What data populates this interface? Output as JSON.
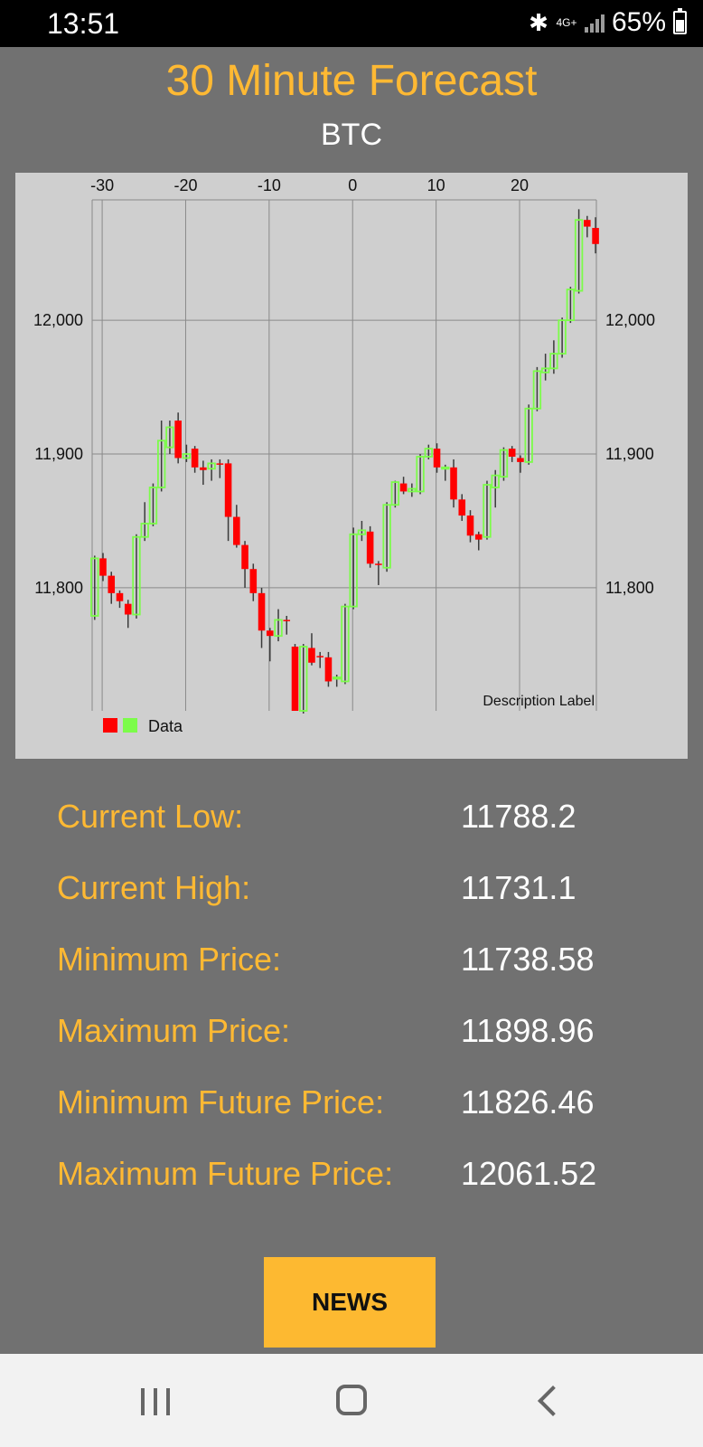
{
  "status_bar": {
    "time": "13:51",
    "network": "4G+",
    "battery": "65%",
    "battery_level": 0.65
  },
  "header": {
    "title": "30 Minute Forecast",
    "subtitle": "BTC"
  },
  "chart_data": {
    "type": "candlestick",
    "description_label": "Description Label",
    "legend": "Data",
    "colors": {
      "increasing": "#7cfc4a",
      "decreasing": "#ff0000",
      "wick": "#3a3a3a",
      "grid": "#8a8a8a",
      "background": "#cfcfcf"
    },
    "xlim": [
      -31.2,
      29.2
    ],
    "ylim": [
      11708,
      12090
    ],
    "x_ticks": [
      -30,
      -20,
      -10,
      0,
      10,
      20
    ],
    "x_tick_labels": [
      "-30",
      "-20",
      "-10",
      "0",
      "10",
      "20"
    ],
    "y_ticks": [
      11800,
      11900,
      12000
    ],
    "y_tick_labels": [
      "11,800",
      "11,900",
      "12,000"
    ],
    "grid": true,
    "candles": [
      {
        "x": -30.9,
        "open": 11779,
        "close": 11822,
        "high": 11824,
        "low": 11776
      },
      {
        "x": -29.9,
        "open": 11822,
        "close": 11809,
        "high": 11826,
        "low": 11805
      },
      {
        "x": -28.9,
        "open": 11809,
        "close": 11796,
        "high": 11812,
        "low": 11788
      },
      {
        "x": -27.9,
        "open": 11796,
        "close": 11790,
        "high": 11798,
        "low": 11785
      },
      {
        "x": -26.9,
        "open": 11788,
        "close": 11780,
        "high": 11791,
        "low": 11770
      },
      {
        "x": -25.9,
        "open": 11780,
        "close": 11838,
        "high": 11840,
        "low": 11777
      },
      {
        "x": -24.9,
        "open": 11838,
        "close": 11848,
        "high": 11864,
        "low": 11835
      },
      {
        "x": -23.9,
        "open": 11848,
        "close": 11875,
        "high": 11878,
        "low": 11846
      },
      {
        "x": -22.9,
        "open": 11875,
        "close": 11910,
        "high": 11925,
        "low": 11872
      },
      {
        "x": -21.9,
        "open": 11905,
        "close": 11920,
        "high": 11925,
        "low": 11900
      },
      {
        "x": -20.9,
        "open": 11925,
        "close": 11897,
        "high": 11931,
        "low": 11893
      },
      {
        "x": -19.9,
        "open": 11897,
        "close": 11900,
        "high": 11907,
        "low": 11894
      },
      {
        "x": -18.9,
        "open": 11904,
        "close": 11890,
        "high": 11906,
        "low": 11886
      },
      {
        "x": -17.9,
        "open": 11890,
        "close": 11888,
        "high": 11895,
        "low": 11877
      },
      {
        "x": -16.9,
        "open": 11889,
        "close": 11893,
        "high": 11896,
        "low": 11880
      },
      {
        "x": -15.9,
        "open": 11893,
        "close": 11892,
        "high": 11896,
        "low": 11882
      },
      {
        "x": -14.9,
        "open": 11893,
        "close": 11853,
        "high": 11896,
        "low": 11835
      },
      {
        "x": -13.9,
        "open": 11853,
        "close": 11832,
        "high": 11862,
        "low": 11830
      },
      {
        "x": -12.9,
        "open": 11832,
        "close": 11814,
        "high": 11835,
        "low": 11800
      },
      {
        "x": -11.9,
        "open": 11814,
        "close": 11796,
        "high": 11818,
        "low": 11790
      },
      {
        "x": -10.9,
        "open": 11796,
        "close": 11768,
        "high": 11800,
        "low": 11755
      },
      {
        "x": -9.9,
        "open": 11768,
        "close": 11764,
        "high": 11770,
        "low": 11745
      },
      {
        "x": -8.9,
        "open": 11764,
        "close": 11776,
        "high": 11784,
        "low": 11760
      },
      {
        "x": -7.9,
        "open": 11776,
        "close": 11775,
        "high": 11779,
        "low": 11765
      },
      {
        "x": -6.9,
        "open": 11756,
        "close": 11708,
        "high": 11758,
        "low": 11708
      },
      {
        "x": -5.9,
        "open": 11708,
        "close": 11756,
        "high": 11758,
        "low": 11706
      },
      {
        "x": -4.9,
        "open": 11755,
        "close": 11744,
        "high": 11766,
        "low": 11742
      },
      {
        "x": -3.9,
        "open": 11749,
        "close": 11748,
        "high": 11752,
        "low": 11740
      },
      {
        "x": -2.9,
        "open": 11748,
        "close": 11730,
        "high": 11752,
        "low": 11726
      },
      {
        "x": -1.9,
        "open": 11732,
        "close": 11733,
        "high": 11735,
        "low": 11726
      },
      {
        "x": -0.9,
        "open": 11730,
        "close": 11786,
        "high": 11788,
        "low": 11728
      },
      {
        "x": 0.1,
        "open": 11786,
        "close": 11840,
        "high": 11845,
        "low": 11784
      },
      {
        "x": 1.1,
        "open": 11840,
        "close": 11843,
        "high": 11850,
        "low": 11835
      },
      {
        "x": 2.1,
        "open": 11842,
        "close": 11818,
        "high": 11846,
        "low": 11815
      },
      {
        "x": 3.1,
        "open": 11818,
        "close": 11817,
        "high": 11820,
        "low": 11802
      },
      {
        "x": 4.1,
        "open": 11815,
        "close": 11862,
        "high": 11864,
        "low": 11812
      },
      {
        "x": 5.1,
        "open": 11862,
        "close": 11879,
        "high": 11880,
        "low": 11860
      },
      {
        "x": 6.1,
        "open": 11878,
        "close": 11872,
        "high": 11883,
        "low": 11870
      },
      {
        "x": 7.1,
        "open": 11872,
        "close": 11874,
        "high": 11878,
        "low": 11868
      },
      {
        "x": 8.1,
        "open": 11872,
        "close": 11898,
        "high": 11900,
        "low": 11870
      },
      {
        "x": 9.1,
        "open": 11898,
        "close": 11904,
        "high": 11907,
        "low": 11896
      },
      {
        "x": 10.1,
        "open": 11904,
        "close": 11890,
        "high": 11908,
        "low": 11886
      },
      {
        "x": 11.1,
        "open": 11889,
        "close": 11890,
        "high": 11892,
        "low": 11880
      },
      {
        "x": 12.1,
        "open": 11890,
        "close": 11866,
        "high": 11896,
        "low": 11860
      },
      {
        "x": 13.1,
        "open": 11866,
        "close": 11854,
        "high": 11870,
        "low": 11850
      },
      {
        "x": 14.1,
        "open": 11854,
        "close": 11839,
        "high": 11858,
        "low": 11834
      },
      {
        "x": 15.1,
        "open": 11840,
        "close": 11836,
        "high": 11842,
        "low": 11828
      },
      {
        "x": 16.1,
        "open": 11838,
        "close": 11877,
        "high": 11880,
        "low": 11836
      },
      {
        "x": 17.1,
        "open": 11875,
        "close": 11884,
        "high": 11888,
        "low": 11860
      },
      {
        "x": 18.1,
        "open": 11883,
        "close": 11903,
        "high": 11905,
        "low": 11880
      },
      {
        "x": 19.1,
        "open": 11904,
        "close": 11898,
        "high": 11906,
        "low": 11894
      },
      {
        "x": 20.1,
        "open": 11897,
        "close": 11894,
        "high": 11899,
        "low": 11886
      },
      {
        "x": 21.1,
        "open": 11894,
        "close": 11934,
        "high": 11937,
        "low": 11892
      },
      {
        "x": 22.1,
        "open": 11934,
        "close": 11962,
        "high": 11965,
        "low": 11932
      },
      {
        "x": 23.1,
        "open": 11961,
        "close": 11964,
        "high": 11975,
        "low": 11955
      },
      {
        "x": 24.1,
        "open": 11964,
        "close": 11975,
        "high": 11985,
        "low": 11960
      },
      {
        "x": 25.1,
        "open": 11975,
        "close": 12000,
        "high": 12002,
        "low": 11972
      },
      {
        "x": 26.1,
        "open": 12000,
        "close": 12023,
        "high": 12025,
        "low": 11998
      },
      {
        "x": 27.1,
        "open": 12022,
        "close": 12075,
        "high": 12083,
        "low": 12020
      },
      {
        "x": 28.1,
        "open": 12075,
        "close": 12070,
        "high": 12078,
        "low": 12062
      },
      {
        "x": 29.1,
        "open": 12069,
        "close": 12057,
        "high": 12077,
        "low": 12050
      }
    ]
  },
  "stats": [
    {
      "label": "Current Low:",
      "value": "11788.2"
    },
    {
      "label": "Current High:",
      "value": "11731.1"
    },
    {
      "label": "Minimum Price:",
      "value": "11738.58"
    },
    {
      "label": "Maximum Price:",
      "value": "11898.96"
    },
    {
      "label": "Minimum Future Price:",
      "value": "11826.46"
    },
    {
      "label": "Maximum Future Price:",
      "value": "12061.52"
    }
  ],
  "news_button": {
    "label": "NEWS"
  },
  "nav_bar": {
    "recents_icon": "recents-icon",
    "home_icon": "home-icon",
    "back_icon": "back-icon"
  }
}
